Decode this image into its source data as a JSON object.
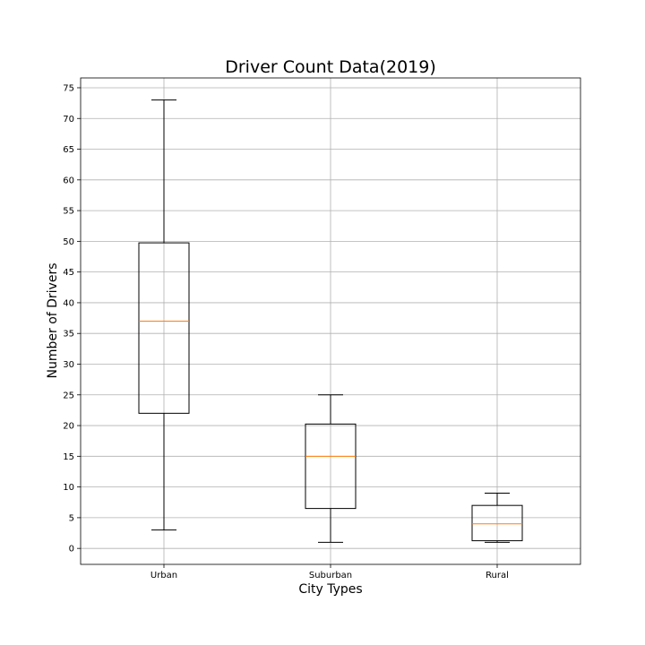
{
  "chart_data": {
    "type": "box",
    "title": "Driver Count Data(2019)",
    "xlabel": "City Types",
    "ylabel": "Number of Drivers",
    "categories": [
      "Urban",
      "Suburban",
      "Rural"
    ],
    "boxes": [
      {
        "name": "Urban",
        "whisker_low": 3,
        "q1": 22,
        "median": 37,
        "q3": 49.75,
        "whisker_high": 73
      },
      {
        "name": "Suburban",
        "whisker_low": 1,
        "q1": 6.5,
        "median": 15,
        "q3": 20.25,
        "whisker_high": 25
      },
      {
        "name": "Rural",
        "whisker_low": 1,
        "q1": 1.25,
        "median": 4,
        "q3": 7,
        "whisker_high": 9
      }
    ],
    "ylim": [
      -2.6,
      76.6
    ],
    "yticks": [
      0,
      5,
      10,
      15,
      20,
      25,
      30,
      35,
      40,
      45,
      50,
      55,
      60,
      65,
      70,
      75
    ],
    "grid": true,
    "colors": {
      "box": "#000000",
      "median": "#ff7f0e",
      "grid": "#b0b0b0"
    }
  }
}
